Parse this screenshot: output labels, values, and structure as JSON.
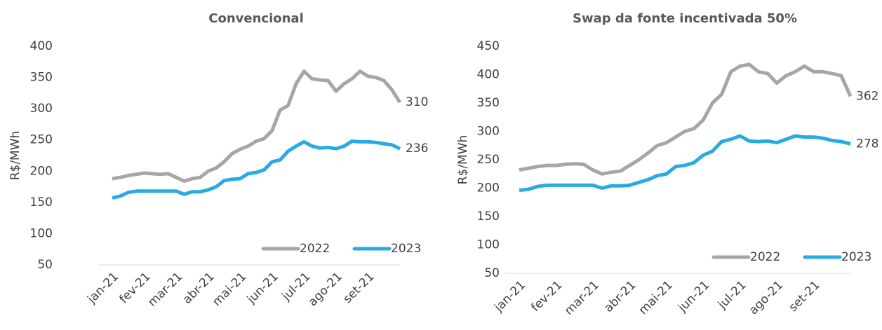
{
  "chart_data": [
    {
      "type": "line",
      "title": "Convencional",
      "ylabel": "R$/MWh",
      "categories": [
        "jan-21",
        null,
        null,
        null,
        "fev-21",
        null,
        null,
        null,
        "mar-21",
        null,
        null,
        null,
        "abr-21",
        null,
        null,
        null,
        "mai-21",
        null,
        null,
        null,
        "jun-21",
        null,
        null,
        null,
        "jul-21",
        null,
        null,
        null,
        "ago-21",
        null,
        null,
        null,
        "set-21",
        null,
        null,
        null,
        null
      ],
      "series": [
        {
          "name": "2022",
          "color": "#a6a6a6",
          "values": [
            188,
            190,
            193,
            195,
            197,
            196,
            195,
            196,
            190,
            184,
            188,
            190,
            200,
            205,
            215,
            228,
            235,
            240,
            248,
            252,
            265,
            298,
            305,
            340,
            360,
            348,
            346,
            345,
            328,
            340,
            348,
            360,
            352,
            350,
            345,
            330,
            310
          ]
        },
        {
          "name": "2023",
          "color": "#29abe2",
          "values": [
            157,
            160,
            166,
            168,
            168,
            168,
            168,
            168,
            168,
            163,
            167,
            167,
            170,
            175,
            185,
            187,
            188,
            196,
            198,
            202,
            215,
            218,
            232,
            240,
            247,
            240,
            237,
            238,
            236,
            240,
            248,
            247,
            247,
            246,
            244,
            242,
            236
          ]
        }
      ],
      "ylim": [
        50,
        400
      ],
      "yticks": [
        50,
        100,
        150,
        200,
        250,
        300,
        350,
        400
      ],
      "legend": "lower right"
    },
    {
      "type": "line",
      "title": "Swap da fonte incentivada 50%",
      "ylabel": "R$/MWh",
      "categories": [
        "jan-21",
        null,
        null,
        null,
        "fev-21",
        null,
        null,
        null,
        "mar-21",
        null,
        null,
        null,
        "abr-21",
        null,
        null,
        null,
        "mai-21",
        null,
        null,
        null,
        "jun-21",
        null,
        null,
        null,
        "jul-21",
        null,
        null,
        null,
        "ago-21",
        null,
        null,
        null,
        "set-21",
        null,
        null,
        null,
        null
      ],
      "series": [
        {
          "name": "2022",
          "color": "#a6a6a6",
          "values": [
            232,
            235,
            238,
            240,
            240,
            242,
            243,
            242,
            232,
            225,
            228,
            230,
            240,
            250,
            262,
            275,
            280,
            290,
            300,
            305,
            320,
            350,
            365,
            405,
            415,
            418,
            405,
            402,
            385,
            398,
            405,
            415,
            405,
            405,
            402,
            398,
            362
          ]
        },
        {
          "name": "2023",
          "color": "#29abe2",
          "values": [
            196,
            198,
            203,
            205,
            205,
            205,
            205,
            205,
            205,
            200,
            204,
            204,
            205,
            210,
            215,
            222,
            225,
            238,
            240,
            245,
            258,
            265,
            282,
            286,
            292,
            283,
            282,
            283,
            280,
            286,
            292,
            290,
            290,
            288,
            284,
            282,
            278
          ]
        }
      ],
      "ylim": [
        50,
        450
      ],
      "yticks": [
        50,
        100,
        150,
        200,
        250,
        300,
        350,
        400,
        450
      ],
      "legend": "lower right"
    }
  ]
}
